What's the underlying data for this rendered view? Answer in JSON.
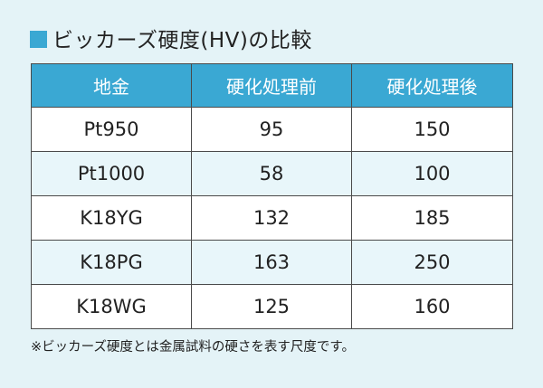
{
  "title": "ビッカーズ硬度(HV)の比較",
  "colors": {
    "accent": "#3aa8d3",
    "background": "#e4f3f7",
    "row_alt": "#e8f6fa"
  },
  "table": {
    "headers": [
      "地金",
      "硬化処理前",
      "硬化処理後"
    ],
    "rows": [
      {
        "metal": "Pt950",
        "before": "95",
        "after": "150"
      },
      {
        "metal": "Pt1000",
        "before": "58",
        "after": "100"
      },
      {
        "metal": "K18YG",
        "before": "132",
        "after": "185"
      },
      {
        "metal": "K18PG",
        "before": "163",
        "after": "250"
      },
      {
        "metal": "K18WG",
        "before": "125",
        "after": "160"
      }
    ]
  },
  "note": "※ビッカーズ硬度とは金属試料の硬さを表す尺度です。"
}
